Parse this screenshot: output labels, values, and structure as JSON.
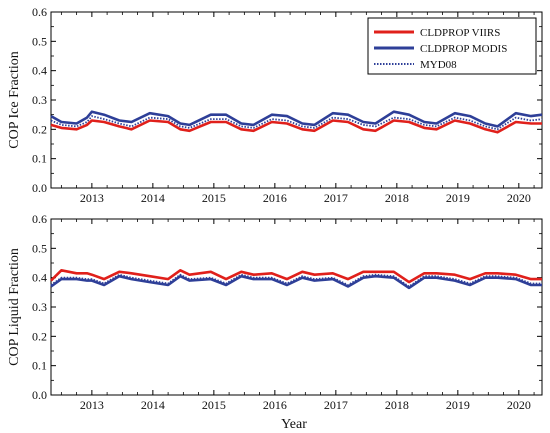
{
  "colors": {
    "viirs": "#e0201b",
    "modis": "#2e3f98",
    "myd08": "#2e3f98",
    "axis": "#000000"
  },
  "legend": {
    "placement": "top-right",
    "items": [
      {
        "label": "CLDPROP VIIRS",
        "style": "solid",
        "color": "#e0201b"
      },
      {
        "label": "CLDPROP MODIS",
        "style": "solid",
        "color": "#2e3f98"
      },
      {
        "label": "MYD08",
        "style": "dotted",
        "color": "#2e3f98"
      }
    ]
  },
  "xlabel": "Year",
  "chart_data": [
    {
      "type": "line",
      "ylabel": "COP Ice Fraction",
      "xlim": [
        2012.33,
        2020.38
      ],
      "ylim": [
        0,
        0.6
      ],
      "yticks": [
        "0.0",
        "0.1",
        "0.2",
        "0.3",
        "0.4",
        "0.5",
        "0.6"
      ],
      "xticks": [
        "2013",
        "2014",
        "2015",
        "2016",
        "2017",
        "2018",
        "2019",
        "2020"
      ],
      "grid": false,
      "series": [
        {
          "name": "CLDPROP VIIRS",
          "style": "solid",
          "x": [
            2012.33,
            2012.5,
            2012.75,
            2012.92,
            2013.0,
            2013.2,
            2013.45,
            2013.65,
            2013.95,
            2014.25,
            2014.45,
            2014.6,
            2014.95,
            2015.2,
            2015.45,
            2015.65,
            2015.95,
            2016.2,
            2016.45,
            2016.65,
            2016.95,
            2017.2,
            2017.45,
            2017.65,
            2017.95,
            2018.2,
            2018.45,
            2018.65,
            2018.95,
            2019.2,
            2019.45,
            2019.65,
            2019.95,
            2020.2,
            2020.38
          ],
          "y": [
            0.215,
            0.205,
            0.2,
            0.215,
            0.23,
            0.225,
            0.21,
            0.2,
            0.23,
            0.225,
            0.2,
            0.195,
            0.225,
            0.225,
            0.2,
            0.195,
            0.225,
            0.22,
            0.2,
            0.195,
            0.23,
            0.225,
            0.2,
            0.195,
            0.23,
            0.225,
            0.205,
            0.2,
            0.23,
            0.22,
            0.2,
            0.19,
            0.225,
            0.22,
            0.22
          ]
        },
        {
          "name": "CLDPROP MODIS",
          "style": "solid",
          "x": [
            2012.33,
            2012.5,
            2012.75,
            2012.92,
            2013.0,
            2013.2,
            2013.45,
            2013.65,
            2013.95,
            2014.25,
            2014.45,
            2014.6,
            2014.95,
            2015.2,
            2015.45,
            2015.65,
            2015.95,
            2016.2,
            2016.45,
            2016.65,
            2016.95,
            2017.2,
            2017.45,
            2017.65,
            2017.95,
            2018.2,
            2018.45,
            2018.65,
            2018.95,
            2019.2,
            2019.45,
            2019.65,
            2019.95,
            2020.2,
            2020.38
          ],
          "y": [
            0.245,
            0.225,
            0.22,
            0.24,
            0.26,
            0.25,
            0.23,
            0.225,
            0.255,
            0.245,
            0.22,
            0.215,
            0.25,
            0.25,
            0.22,
            0.215,
            0.25,
            0.245,
            0.22,
            0.215,
            0.255,
            0.25,
            0.225,
            0.22,
            0.26,
            0.25,
            0.225,
            0.22,
            0.255,
            0.245,
            0.22,
            0.21,
            0.255,
            0.245,
            0.25
          ]
        },
        {
          "name": "MYD08",
          "style": "dotted",
          "x": [
            2012.33,
            2012.5,
            2012.75,
            2012.92,
            2013.0,
            2013.2,
            2013.45,
            2013.65,
            2013.95,
            2014.25,
            2014.45,
            2014.6,
            2014.95,
            2015.2,
            2015.45,
            2015.65,
            2015.95,
            2016.2,
            2016.45,
            2016.65,
            2016.95,
            2017.2,
            2017.45,
            2017.65,
            2017.95,
            2018.2,
            2018.45,
            2018.65,
            2018.95,
            2019.2,
            2019.45,
            2019.65,
            2019.95,
            2020.2,
            2020.38
          ],
          "y": [
            0.23,
            0.215,
            0.21,
            0.225,
            0.245,
            0.235,
            0.22,
            0.21,
            0.24,
            0.235,
            0.21,
            0.205,
            0.235,
            0.235,
            0.21,
            0.205,
            0.235,
            0.23,
            0.21,
            0.205,
            0.24,
            0.235,
            0.215,
            0.21,
            0.24,
            0.235,
            0.215,
            0.21,
            0.24,
            0.23,
            0.21,
            0.2,
            0.24,
            0.23,
            0.235
          ]
        }
      ]
    },
    {
      "type": "line",
      "ylabel": "COP Liquid Fraction",
      "xlim": [
        2012.33,
        2020.38
      ],
      "ylim": [
        0,
        0.6
      ],
      "yticks": [
        "0.0",
        "0.1",
        "0.2",
        "0.3",
        "0.4",
        "0.5",
        "0.6"
      ],
      "xticks": [
        "2013",
        "2014",
        "2015",
        "2016",
        "2017",
        "2018",
        "2019",
        "2020"
      ],
      "grid": false,
      "series": [
        {
          "name": "CLDPROP VIIRS",
          "style": "solid",
          "x": [
            2012.33,
            2012.5,
            2012.75,
            2012.92,
            2013.0,
            2013.2,
            2013.45,
            2013.65,
            2013.95,
            2014.25,
            2014.45,
            2014.6,
            2014.95,
            2015.2,
            2015.45,
            2015.65,
            2015.95,
            2016.2,
            2016.45,
            2016.65,
            2016.95,
            2017.2,
            2017.45,
            2017.65,
            2017.95,
            2018.2,
            2018.45,
            2018.65,
            2018.95,
            2019.2,
            2019.45,
            2019.65,
            2019.95,
            2020.2,
            2020.38
          ],
          "y": [
            0.39,
            0.425,
            0.415,
            0.415,
            0.41,
            0.395,
            0.42,
            0.415,
            0.405,
            0.395,
            0.425,
            0.41,
            0.42,
            0.395,
            0.42,
            0.41,
            0.415,
            0.395,
            0.42,
            0.41,
            0.415,
            0.395,
            0.42,
            0.42,
            0.42,
            0.385,
            0.415,
            0.415,
            0.41,
            0.395,
            0.415,
            0.415,
            0.41,
            0.395,
            0.395
          ]
        },
        {
          "name": "CLDPROP MODIS",
          "style": "solid",
          "x": [
            2012.33,
            2012.5,
            2012.75,
            2012.92,
            2013.0,
            2013.2,
            2013.45,
            2013.65,
            2013.95,
            2014.25,
            2014.45,
            2014.6,
            2014.95,
            2015.2,
            2015.45,
            2015.65,
            2015.95,
            2016.2,
            2016.45,
            2016.65,
            2016.95,
            2017.2,
            2017.45,
            2017.65,
            2017.95,
            2018.2,
            2018.45,
            2018.65,
            2018.95,
            2019.2,
            2019.45,
            2019.65,
            2019.95,
            2020.2,
            2020.38
          ],
          "y": [
            0.37,
            0.395,
            0.395,
            0.39,
            0.39,
            0.375,
            0.405,
            0.395,
            0.385,
            0.375,
            0.405,
            0.39,
            0.395,
            0.375,
            0.405,
            0.395,
            0.395,
            0.375,
            0.4,
            0.39,
            0.395,
            0.37,
            0.4,
            0.405,
            0.4,
            0.365,
            0.4,
            0.4,
            0.39,
            0.375,
            0.4,
            0.4,
            0.395,
            0.375,
            0.375
          ]
        },
        {
          "name": "MYD08",
          "style": "dotted",
          "x": [
            2012.33,
            2012.5,
            2012.75,
            2012.92,
            2013.0,
            2013.2,
            2013.45,
            2013.65,
            2013.95,
            2014.25,
            2014.45,
            2014.6,
            2014.95,
            2015.2,
            2015.45,
            2015.65,
            2015.95,
            2016.2,
            2016.45,
            2016.65,
            2016.95,
            2017.2,
            2017.45,
            2017.65,
            2017.95,
            2018.2,
            2018.45,
            2018.65,
            2018.95,
            2019.2,
            2019.45,
            2019.65,
            2019.95,
            2020.2,
            2020.38
          ],
          "y": [
            0.375,
            0.4,
            0.4,
            0.395,
            0.395,
            0.38,
            0.41,
            0.4,
            0.39,
            0.38,
            0.41,
            0.395,
            0.4,
            0.38,
            0.41,
            0.4,
            0.4,
            0.38,
            0.405,
            0.395,
            0.4,
            0.375,
            0.405,
            0.41,
            0.405,
            0.37,
            0.405,
            0.405,
            0.395,
            0.38,
            0.405,
            0.405,
            0.4,
            0.38,
            0.38
          ]
        }
      ]
    }
  ]
}
